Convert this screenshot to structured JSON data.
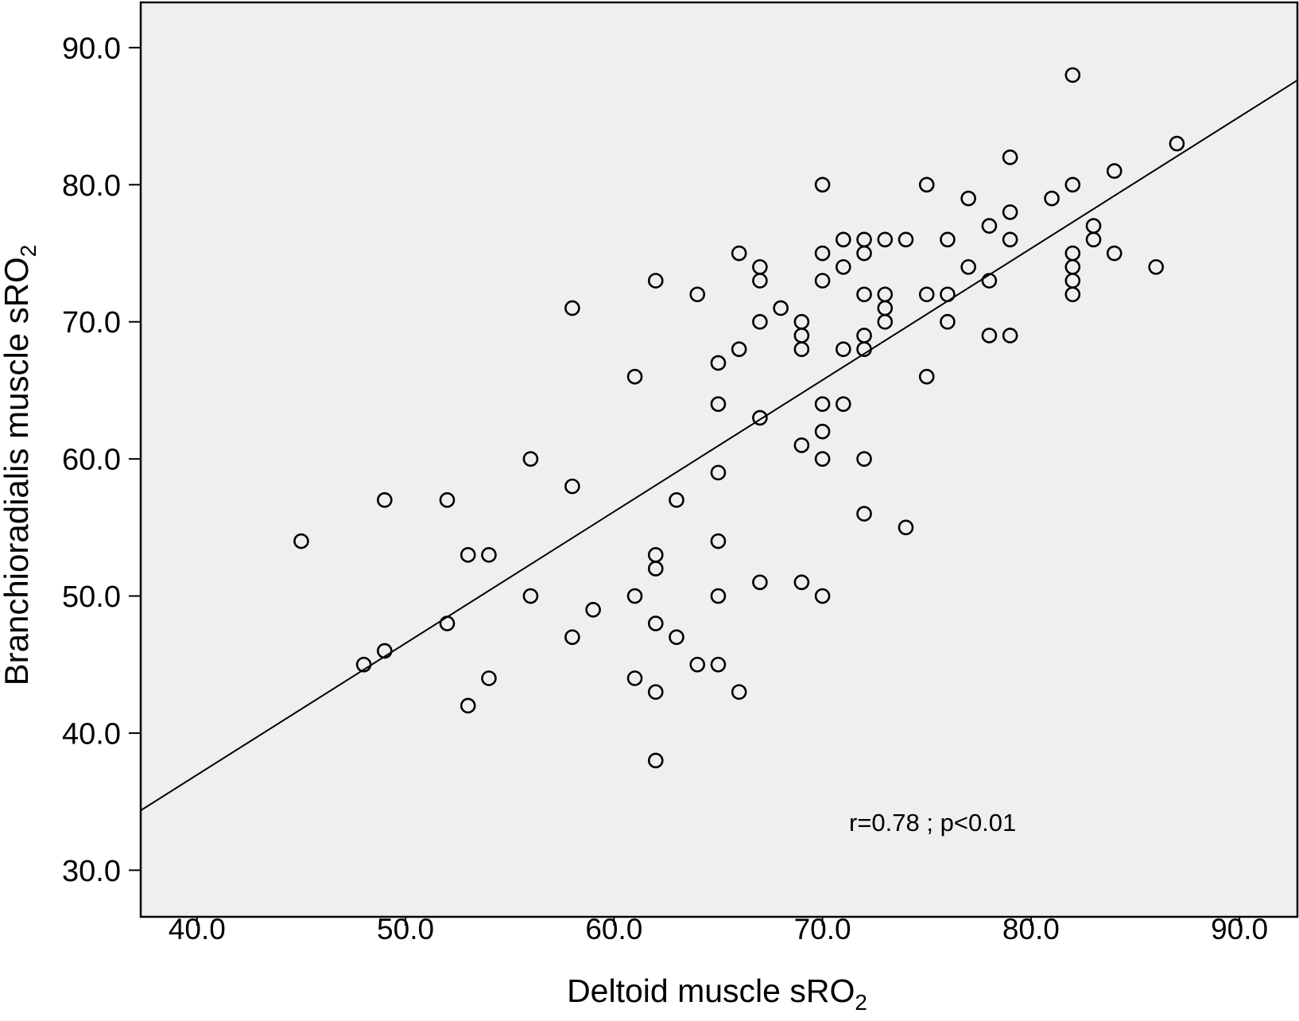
{
  "chart_data": {
    "type": "scatter",
    "title": "",
    "xlabel": "Deltoid muscle sRO",
    "xlabel_subscript": "2",
    "ylabel": "Branchioradialis muscle sRO",
    "ylabel_subscript": "2",
    "xlim": [
      37.3,
      92.78
    ],
    "ylim": [
      26.6,
      93.3
    ],
    "xticks": [
      40,
      50,
      60,
      70,
      80,
      90
    ],
    "xtick_labels": [
      "40.0",
      "50.0",
      "60.0",
      "70.0",
      "80.0",
      "90.0"
    ],
    "yticks": [
      30,
      40,
      50,
      60,
      70,
      80,
      90
    ],
    "ytick_labels": [
      "30.0",
      "40.0",
      "50.0",
      "60.0",
      "70.0",
      "80.0",
      "90.0"
    ],
    "grid": false,
    "legend": "none",
    "annotation": "r=0.78 ; p<0.01",
    "series": [
      {
        "type": "scatter",
        "marker": "open-circle",
        "x": [
          45,
          48,
          49,
          49,
          52,
          52,
          53,
          53,
          54,
          54,
          56,
          56,
          58,
          58,
          58,
          59,
          61,
          61,
          61,
          62,
          62,
          62,
          62,
          62,
          62,
          63,
          63,
          64,
          64,
          65,
          65,
          65,
          65,
          65,
          65,
          66,
          66,
          66,
          67,
          67,
          67,
          67,
          67,
          68,
          69,
          69,
          69,
          69,
          69,
          70,
          70,
          70,
          70,
          70,
          70,
          70,
          71,
          71,
          71,
          71,
          72,
          72,
          72,
          72,
          72,
          72,
          72,
          73,
          73,
          73,
          73,
          74,
          74,
          75,
          75,
          75,
          76,
          76,
          76,
          77,
          77,
          78,
          78,
          78,
          79,
          79,
          79,
          79,
          81,
          82,
          82,
          82,
          82,
          82,
          82,
          83,
          83,
          84,
          84,
          86,
          87
        ],
        "y": [
          54,
          45,
          46,
          57,
          57,
          48,
          53,
          42,
          53,
          44,
          60,
          50,
          71,
          58,
          47,
          49,
          66,
          50,
          44,
          73,
          53,
          52,
          48,
          43,
          38,
          57,
          47,
          72,
          45,
          67,
          64,
          59,
          54,
          50,
          45,
          75,
          68,
          43,
          74,
          73,
          70,
          63,
          51,
          71,
          70,
          69,
          68,
          61,
          51,
          80,
          75,
          73,
          64,
          62,
          60,
          50,
          76,
          74,
          68,
          64,
          76,
          75,
          72,
          69,
          68,
          60,
          56,
          76,
          72,
          71,
          70,
          76,
          55,
          80,
          72,
          66,
          76,
          72,
          70,
          79,
          74,
          77,
          73,
          69,
          82,
          78,
          76,
          69,
          79,
          88,
          80,
          75,
          74,
          73,
          72,
          77,
          76,
          81,
          75,
          74,
          83
        ]
      },
      {
        "type": "line",
        "x": [
          37.3,
          92.78
        ],
        "y": [
          34.36,
          87.62
        ]
      }
    ],
    "colors": {
      "plot_background": "#efefef",
      "marker_edge": "#000000",
      "line": "#000000"
    }
  }
}
